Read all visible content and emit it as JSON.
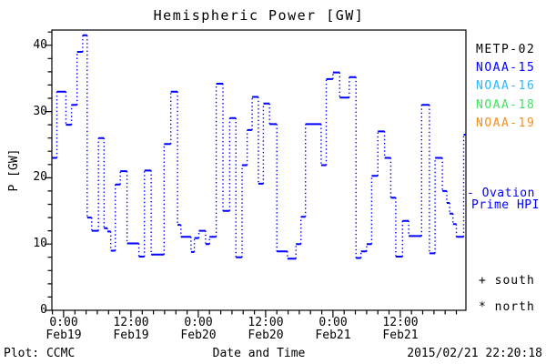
{
  "title": "Hemispheric Power [GW]",
  "footer": {
    "plot_credit": "Plot: CCMC",
    "timestamp": "2015/02/21 22:20:18"
  },
  "legend": {
    "satellites": [
      {
        "label": "METP-02",
        "color": "#000000"
      },
      {
        "label": "NOAA-15",
        "color": "#0000ff"
      },
      {
        "label": "NOAA-16",
        "color": "#2eb6f5"
      },
      {
        "label": "NOAA-18",
        "color": "#46df63"
      },
      {
        "label": "NOAA-19",
        "color": "#f19122"
      }
    ],
    "model_label_line1": "- Ovation",
    "model_label_line2": "Prime HPI",
    "model_color": "#0000ff",
    "south_marker": "+ south",
    "north_marker": "* north"
  },
  "chart_data": {
    "type": "line",
    "subtype": "step",
    "title": "Hemispheric Power [GW]",
    "xlabel": "Date and Time",
    "ylabel": "P [GW]",
    "ylim": [
      0,
      42.3
    ],
    "xlim_hours": [
      -2.1,
      71.7
    ],
    "grid": false,
    "legend_position": "right",
    "y_ticks": [
      0,
      10,
      20,
      30,
      40
    ],
    "y_minor_step": 2,
    "x_minor_step_hours": 2,
    "x_ticks": [
      {
        "hour": 0,
        "time": "0:00",
        "date": "Feb19"
      },
      {
        "hour": 12,
        "time": "12:00",
        "date": "Feb19"
      },
      {
        "hour": 24,
        "time": "0:00",
        "date": "Feb20"
      },
      {
        "hour": 36,
        "time": "12:00",
        "date": "Feb20"
      },
      {
        "hour": 48,
        "time": "0:00",
        "date": "Feb21"
      },
      {
        "hour": 60,
        "time": "12:00",
        "date": "Feb21"
      }
    ],
    "series": [
      {
        "name": "Ovation Prime HPI",
        "color": "#0000ff",
        "style": "step-with-dotted-risers",
        "steps_hour_value": [
          [
            -2.1,
            23
          ],
          [
            -1.2,
            33
          ],
          [
            0.4,
            28
          ],
          [
            1.4,
            31
          ],
          [
            2.4,
            39
          ],
          [
            3.4,
            41.5
          ],
          [
            4.2,
            14
          ],
          [
            5.0,
            12
          ],
          [
            6.2,
            26
          ],
          [
            7.2,
            12.4
          ],
          [
            7.8,
            11.9
          ],
          [
            8.4,
            9
          ],
          [
            9.2,
            19
          ],
          [
            10.1,
            21
          ],
          [
            11.3,
            10.1
          ],
          [
            13.4,
            8.1
          ],
          [
            14.4,
            21.1
          ],
          [
            15.6,
            8.4
          ],
          [
            17.9,
            25.1
          ],
          [
            19.1,
            33
          ],
          [
            20.3,
            12.9
          ],
          [
            20.9,
            11.1
          ],
          [
            22.7,
            8.8
          ],
          [
            23.3,
            10.9
          ],
          [
            24.1,
            12
          ],
          [
            25.3,
            10
          ],
          [
            26.0,
            11.1
          ],
          [
            27.2,
            34.2
          ],
          [
            28.4,
            15
          ],
          [
            29.6,
            29
          ],
          [
            30.7,
            8
          ],
          [
            31.8,
            21.9
          ],
          [
            32.7,
            27.2
          ],
          [
            33.6,
            32.2
          ],
          [
            34.7,
            19.1
          ],
          [
            35.6,
            31.2
          ],
          [
            36.7,
            28.1
          ],
          [
            38.0,
            8.9
          ],
          [
            39.9,
            7.8
          ],
          [
            41.4,
            10
          ],
          [
            42.3,
            14.1
          ],
          [
            43.1,
            28.1
          ],
          [
            45.9,
            21.9
          ],
          [
            46.8,
            34.9
          ],
          [
            48.0,
            35.9
          ],
          [
            49.2,
            32.1
          ],
          [
            50.9,
            35.2
          ],
          [
            52.1,
            7.9
          ],
          [
            53.0,
            8.9
          ],
          [
            54.0,
            10
          ],
          [
            54.9,
            20.3
          ],
          [
            56.0,
            27
          ],
          [
            57.2,
            23
          ],
          [
            58.3,
            17
          ],
          [
            59.2,
            8.1
          ],
          [
            60.4,
            13.5
          ],
          [
            61.5,
            11.2
          ],
          [
            63.8,
            31
          ],
          [
            65.2,
            8.6
          ],
          [
            66.2,
            23
          ],
          [
            67.5,
            18
          ],
          [
            68.3,
            16.2
          ],
          [
            68.8,
            14.6
          ],
          [
            69.4,
            13
          ],
          [
            70.0,
            11.1
          ],
          [
            71.3,
            26.5
          ]
        ]
      }
    ]
  }
}
